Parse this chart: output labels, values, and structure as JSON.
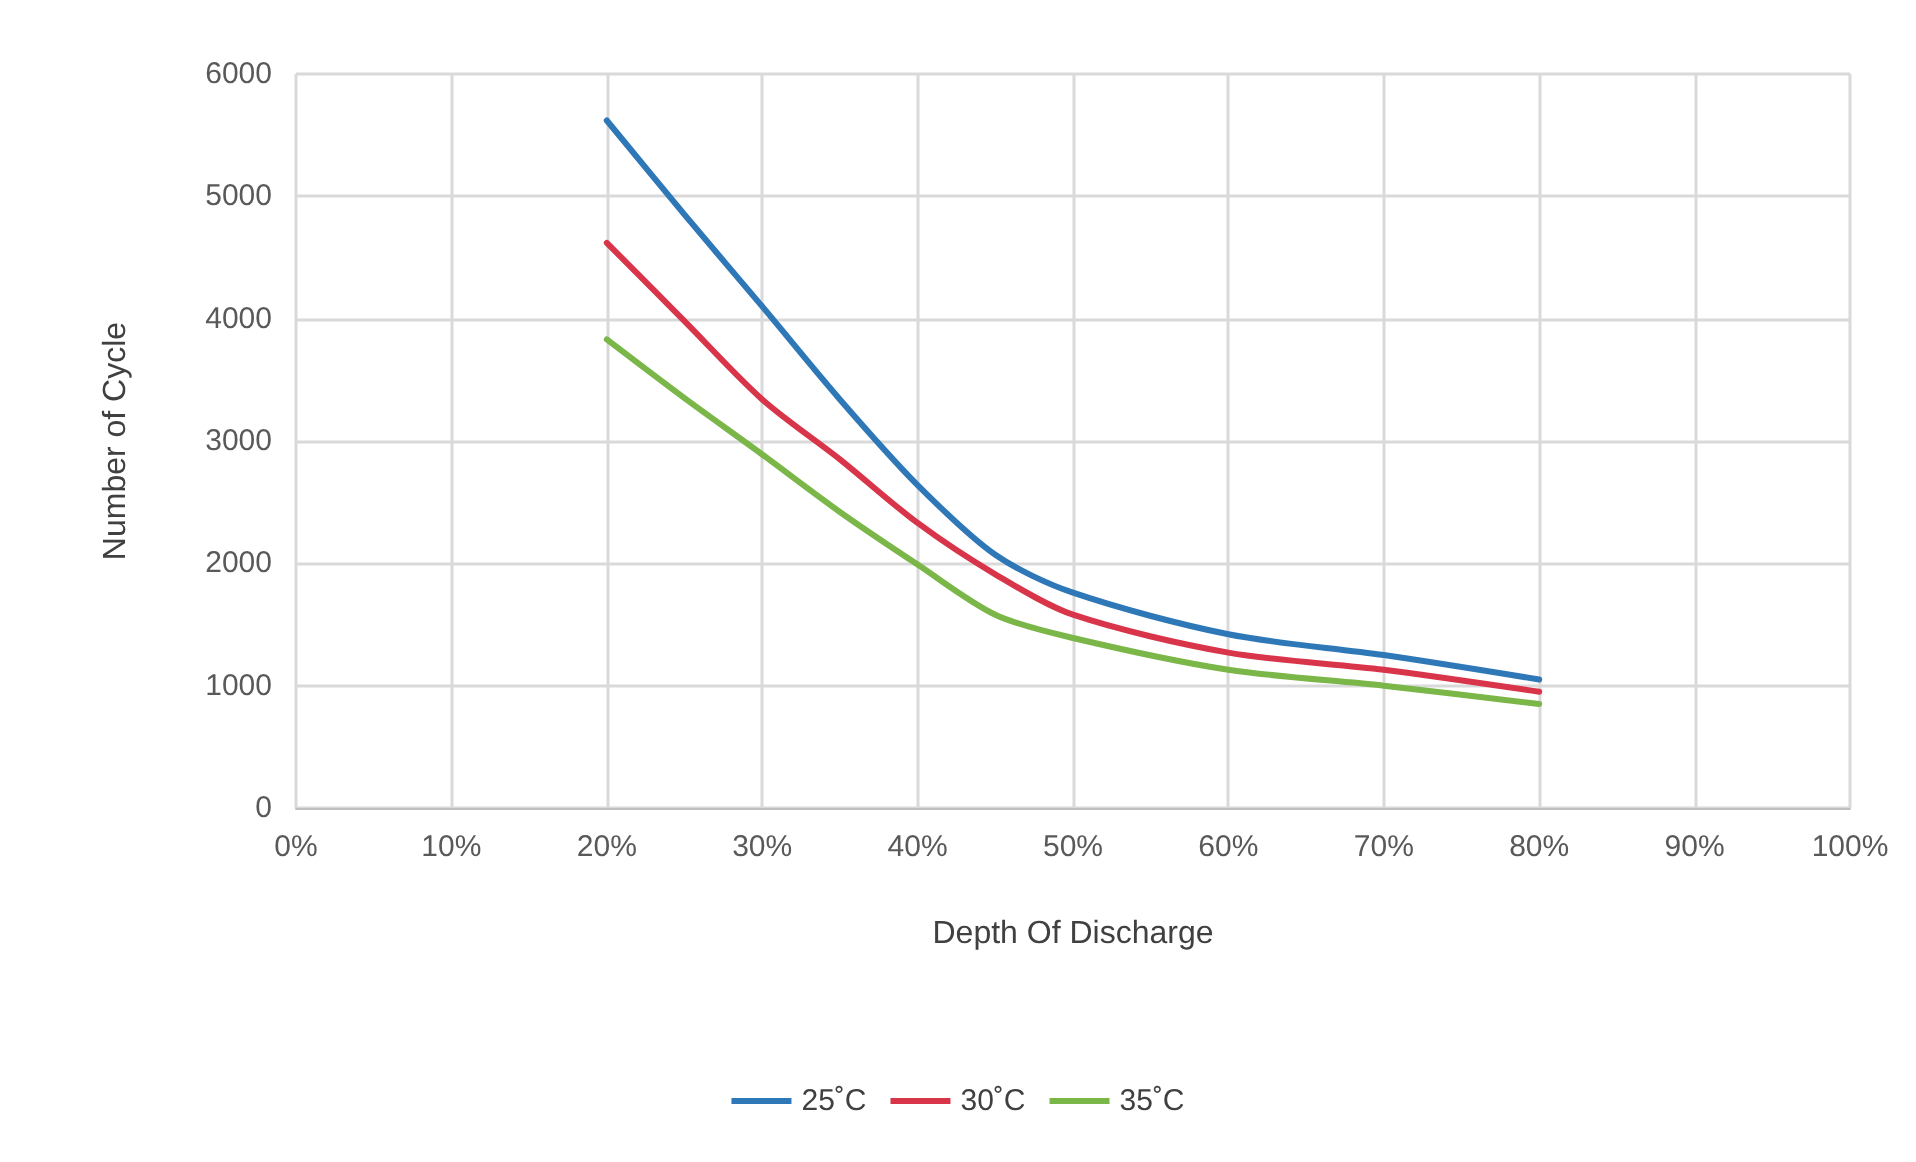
{
  "chart_data": {
    "type": "line",
    "xlabel": "Depth Of Discharge",
    "ylabel": "Number of Cycle",
    "x": [
      20,
      25,
      30,
      35,
      40,
      45,
      50,
      60,
      70,
      80
    ],
    "series": [
      {
        "name": "25˚C",
        "color": "#2f78b8",
        "values": [
          5620,
          4850,
          4100,
          3340,
          2640,
          2070,
          1760,
          1420,
          1250,
          1050
        ]
      },
      {
        "name": "30˚C",
        "color": "#d8354a",
        "values": [
          4620,
          3980,
          3340,
          2850,
          2330,
          1910,
          1580,
          1270,
          1130,
          950
        ]
      },
      {
        "name": "35˚C",
        "color": "#7ab648",
        "values": [
          3830,
          3350,
          2890,
          2420,
          1990,
          1580,
          1390,
          1130,
          1000,
          850
        ]
      }
    ],
    "xlim": [
      0,
      100
    ],
    "xticks": [
      {
        "value": 0,
        "label": "0%"
      },
      {
        "value": 10,
        "label": "10%"
      },
      {
        "value": 20,
        "label": "20%"
      },
      {
        "value": 30,
        "label": "30%"
      },
      {
        "value": 40,
        "label": "40%"
      },
      {
        "value": 50,
        "label": "50%"
      },
      {
        "value": 60,
        "label": "60%"
      },
      {
        "value": 70,
        "label": "70%"
      },
      {
        "value": 80,
        "label": "80%"
      },
      {
        "value": 90,
        "label": "90%"
      },
      {
        "value": 100,
        "label": "100%"
      }
    ],
    "ylim": [
      0,
      6000
    ],
    "yticks": [
      0,
      1000,
      2000,
      3000,
      4000,
      5000,
      6000
    ],
    "grid": true,
    "legend": "bottom",
    "marker": "none",
    "line_style": "solid"
  }
}
